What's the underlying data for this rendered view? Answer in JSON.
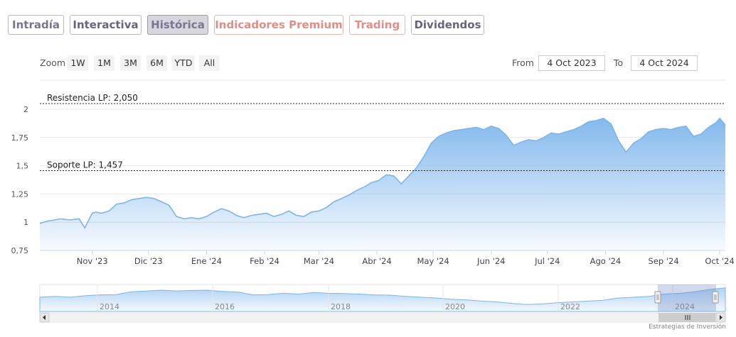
{
  "tabs": [
    {
      "label": "Intradía",
      "style": "normal"
    },
    {
      "label": "Interactiva",
      "style": "dark"
    },
    {
      "label": "Histórica",
      "style": "active"
    },
    {
      "label": "Indicadores Premium",
      "style": "premium"
    },
    {
      "label": "Trading",
      "style": "premium"
    },
    {
      "label": "Dividendos",
      "style": "dark"
    }
  ],
  "zoom": {
    "label": "Zoom",
    "buttons": [
      "1W",
      "1M",
      "3M",
      "6M",
      "YTD",
      "All"
    ]
  },
  "range": {
    "from_label": "From",
    "from_value": "4 Oct 2023",
    "to_label": "To",
    "to_value": "4 Oct 2024"
  },
  "credits": "Estrategias de Inversión",
  "colors": {
    "series": "#7cb5ec",
    "tab_text": "#7a7494",
    "tab_premium": "#e08f86",
    "navigator_mask": "#6685c2"
  },
  "chart_data": {
    "type": "area",
    "title": "",
    "xlabel": "",
    "ylabel": "",
    "ylim": [
      0.75,
      2.0
    ],
    "yticks": [
      {
        "value": 0.75,
        "label": "0,75"
      },
      {
        "value": 1.0,
        "label": "1"
      },
      {
        "value": 1.25,
        "label": "1,25"
      },
      {
        "value": 1.5,
        "label": "1,5"
      },
      {
        "value": 1.75,
        "label": "1,75"
      },
      {
        "value": 2.0,
        "label": "2"
      }
    ],
    "xrange": [
      "2023-10-04",
      "2024-10-04"
    ],
    "xticks": [
      {
        "date": "2023-11-01",
        "label": "Nov '23"
      },
      {
        "date": "2023-12-01",
        "label": "Dic '23"
      },
      {
        "date": "2024-01-01",
        "label": "Ene '24"
      },
      {
        "date": "2024-02-01",
        "label": "Feb '24"
      },
      {
        "date": "2024-03-01",
        "label": "Mar '24"
      },
      {
        "date": "2024-04-01",
        "label": "Abr '24"
      },
      {
        "date": "2024-05-01",
        "label": "May '24"
      },
      {
        "date": "2024-06-01",
        "label": "Jun '24"
      },
      {
        "date": "2024-07-01",
        "label": "Jul '24"
      },
      {
        "date": "2024-08-01",
        "label": "Ago '24"
      },
      {
        "date": "2024-09-01",
        "label": "Sep '24"
      },
      {
        "date": "2024-10-01",
        "label": "Oct '24"
      }
    ],
    "grid": true,
    "plot_lines": [
      {
        "value": 2.05,
        "label": "Resistencia LP: 2,050"
      },
      {
        "value": 1.457,
        "label": "Soporte LP: 1,457"
      }
    ],
    "series": [
      {
        "x": [
          "2023-10-04",
          "2023-10-08",
          "2023-10-12",
          "2023-10-15",
          "2023-10-20",
          "2023-10-25",
          "2023-10-28",
          "2023-11-01",
          "2023-11-03",
          "2023-11-06",
          "2023-11-10",
          "2023-11-14",
          "2023-11-18",
          "2023-11-22",
          "2023-11-26",
          "2023-11-30",
          "2023-12-04",
          "2023-12-08",
          "2023-12-12",
          "2023-12-16",
          "2023-12-20",
          "2023-12-24",
          "2023-12-28",
          "2024-01-01",
          "2024-01-05",
          "2024-01-09",
          "2024-01-13",
          "2024-01-17",
          "2024-01-21",
          "2024-01-25",
          "2024-01-29",
          "2024-02-02",
          "2024-02-06",
          "2024-02-10",
          "2024-02-14",
          "2024-02-18",
          "2024-02-22",
          "2024-02-26",
          "2024-03-01",
          "2024-03-05",
          "2024-03-09",
          "2024-03-13",
          "2024-03-17",
          "2024-03-21",
          "2024-03-25",
          "2024-03-29",
          "2024-04-02",
          "2024-04-06",
          "2024-04-10",
          "2024-04-14",
          "2024-04-18",
          "2024-04-22",
          "2024-04-26",
          "2024-04-30",
          "2024-05-04",
          "2024-05-08",
          "2024-05-12",
          "2024-05-16",
          "2024-05-20",
          "2024-05-24",
          "2024-05-28",
          "2024-06-01",
          "2024-06-05",
          "2024-06-09",
          "2024-06-13",
          "2024-06-17",
          "2024-06-21",
          "2024-06-25",
          "2024-06-29",
          "2024-07-03",
          "2024-07-07",
          "2024-07-11",
          "2024-07-15",
          "2024-07-19",
          "2024-07-23",
          "2024-07-27",
          "2024-07-31",
          "2024-08-04",
          "2024-08-08",
          "2024-08-12",
          "2024-08-16",
          "2024-08-20",
          "2024-08-24",
          "2024-08-28",
          "2024-09-01",
          "2024-09-05",
          "2024-09-09",
          "2024-09-13",
          "2024-09-17",
          "2024-09-21",
          "2024-09-25",
          "2024-09-29",
          "2024-10-01",
          "2024-10-04"
        ],
        "y": [
          0.99,
          1.01,
          1.02,
          1.03,
          1.02,
          1.03,
          0.95,
          1.08,
          1.09,
          1.08,
          1.1,
          1.16,
          1.17,
          1.2,
          1.21,
          1.22,
          1.21,
          1.18,
          1.15,
          1.05,
          1.03,
          1.04,
          1.03,
          1.05,
          1.09,
          1.12,
          1.1,
          1.06,
          1.04,
          1.06,
          1.07,
          1.08,
          1.05,
          1.07,
          1.1,
          1.06,
          1.05,
          1.09,
          1.1,
          1.13,
          1.18,
          1.21,
          1.24,
          1.28,
          1.31,
          1.35,
          1.37,
          1.42,
          1.41,
          1.34,
          1.41,
          1.48,
          1.58,
          1.7,
          1.76,
          1.79,
          1.81,
          1.82,
          1.83,
          1.84,
          1.82,
          1.85,
          1.83,
          1.77,
          1.68,
          1.71,
          1.73,
          1.72,
          1.75,
          1.79,
          1.78,
          1.8,
          1.82,
          1.85,
          1.89,
          1.9,
          1.92,
          1.87,
          1.72,
          1.62,
          1.7,
          1.74,
          1.8,
          1.82,
          1.83,
          1.82,
          1.84,
          1.85,
          1.76,
          1.78,
          1.84,
          1.88,
          1.92,
          1.86
        ]
      }
    ],
    "navigator": {
      "xticks": [
        "2014",
        "2016",
        "2018",
        "2020",
        "2022",
        "2024"
      ]
    }
  }
}
